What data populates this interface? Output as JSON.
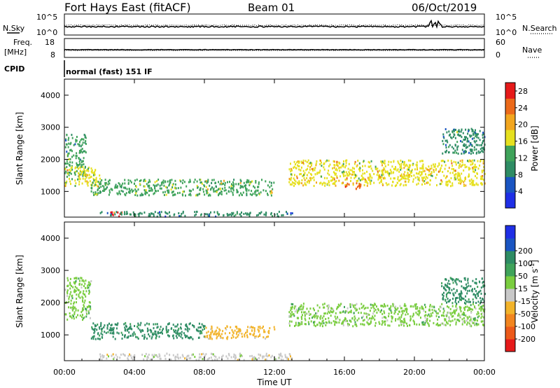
{
  "header": {
    "site": "Fort Hays East (fitACF)",
    "beam": "Beam 01",
    "date": "06/Oct/2019"
  },
  "strips": {
    "nsky_label": "N.Sky",
    "nsearch_label": "N.Search",
    "noise_tick_top": "10^5",
    "noise_tick_bottom": "10^0",
    "freq_label_1": "Freq.",
    "freq_label_2": "[MHz]",
    "freq_ticks": [
      "18",
      "8"
    ],
    "nave_label": "Nave",
    "nave_ticks": [
      "60",
      "0"
    ],
    "cpid_label": "CPID",
    "cpid_text": "normal (fast) 151 IF"
  },
  "xaxis": {
    "label": "Time UT",
    "ticks": [
      "00:00",
      "04:00",
      "08:00",
      "12:00",
      "16:00",
      "20:00",
      "00:00"
    ]
  },
  "colors": {
    "power": [
      "#1f2fe6",
      "#1a55c2",
      "#2e8c64",
      "#3fa35a",
      "#e6e01f",
      "#f2a61f",
      "#ec6a1a",
      "#e61a1a"
    ],
    "velocity": [
      "#e61a1a",
      "#ec5a1a",
      "#f2851f",
      "#f2b32a",
      "#c8c8c8",
      "#7acd3f",
      "#3fa35a",
      "#2e8c64",
      "#1a55c2",
      "#1f2fe6"
    ]
  },
  "chart_data": [
    {
      "type": "heatmap",
      "title": "",
      "xlabel": "Time UT",
      "ylabel": "Slant Range [km]",
      "xlim": [
        "00:00",
        "24:00"
      ],
      "ylim": [
        200,
        4500
      ],
      "y_ticks": [
        "1000",
        "2000",
        "3000",
        "4000"
      ],
      "colorbar_label": "Power [dB]",
      "colorbar_ticks": [
        "4",
        "8",
        "12",
        "16",
        "20",
        "24",
        "28"
      ],
      "colorbar_range": [
        0,
        30
      ],
      "echo_regions": [
        {
          "t_start": 0.0,
          "t_end": 1.2,
          "range_low": 1500,
          "range_high": 2800,
          "power_db": 12
        },
        {
          "t_start": 0.0,
          "t_end": 2.0,
          "range_low": 1200,
          "range_high": 1800,
          "power_db": 18
        },
        {
          "t_start": 1.5,
          "t_end": 12.0,
          "range_low": 900,
          "range_high": 1400,
          "power_db": 14
        },
        {
          "t_start": 2.5,
          "t_end": 3.3,
          "range_low": 250,
          "range_high": 400,
          "power_db": 28
        },
        {
          "t_start": 2.0,
          "t_end": 13.0,
          "range_low": 250,
          "range_high": 400,
          "power_db": 8
        },
        {
          "t_start": 12.8,
          "t_end": 24.0,
          "range_low": 1200,
          "range_high": 2000,
          "power_db": 18
        },
        {
          "t_start": 16.0,
          "t_end": 17.0,
          "range_low": 1100,
          "range_high": 1300,
          "power_db": 24
        },
        {
          "t_start": 21.5,
          "t_end": 24.0,
          "range_low": 2200,
          "range_high": 3000,
          "power_db": 10
        }
      ]
    },
    {
      "type": "heatmap",
      "title": "",
      "xlabel": "Time UT",
      "ylabel": "Slant Range [km]",
      "xlim": [
        "00:00",
        "24:00"
      ],
      "ylim": [
        200,
        4500
      ],
      "y_ticks": [
        "1000",
        "2000",
        "3000",
        "4000"
      ],
      "colorbar_label": "Velocity [m s^-1]",
      "colorbar_ticks": [
        "-200",
        "-100",
        "-50",
        "-15",
        "15",
        "50",
        "100",
        "200"
      ],
      "colorbar_range": [
        -250,
        250
      ],
      "echo_regions": [
        {
          "t_start": 0.0,
          "t_end": 1.5,
          "range_low": 1500,
          "range_high": 2800,
          "velocity": 0
        },
        {
          "t_start": 1.5,
          "t_end": 8.0,
          "range_low": 900,
          "range_high": 1400,
          "velocity": 60
        },
        {
          "t_start": 8.0,
          "t_end": 12.0,
          "range_low": 900,
          "range_high": 1300,
          "velocity": -60
        },
        {
          "t_start": 2.0,
          "t_end": 13.0,
          "range_low": 250,
          "range_high": 450,
          "velocity": -40
        },
        {
          "t_start": 12.8,
          "t_end": 24.0,
          "range_low": 1300,
          "range_high": 2000,
          "velocity": 0
        },
        {
          "t_start": 21.5,
          "t_end": 24.0,
          "range_low": 2000,
          "range_high": 2800,
          "velocity": 60
        }
      ]
    }
  ]
}
